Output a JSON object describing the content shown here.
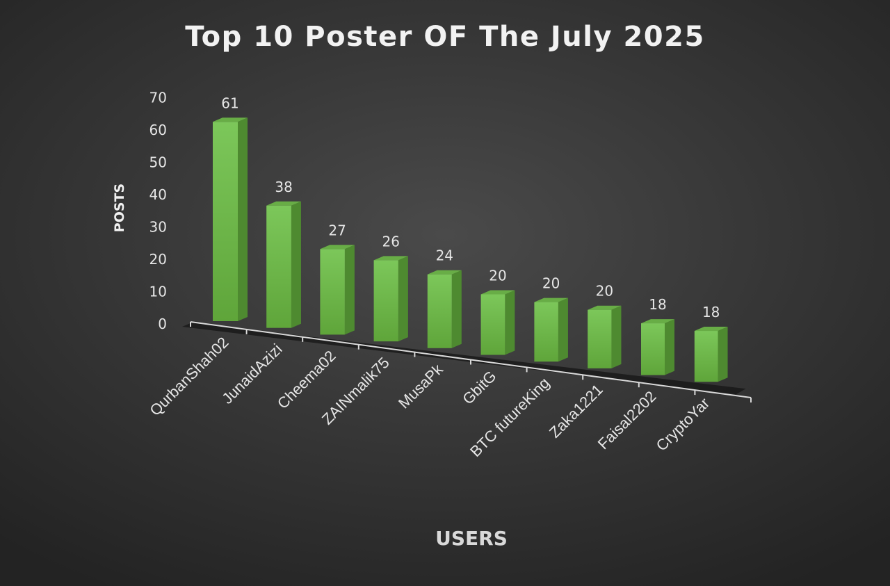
{
  "chart_data": {
    "type": "bar",
    "title": "Top 10 Poster OF The July 2025",
    "xlabel": "USERS",
    "ylabel": "POSTS",
    "categories": [
      "QurbanShah02",
      "JunaidAzizi",
      "Cheema02",
      "ZAINmalik75",
      "MusaPk",
      "GbitG",
      "BTC futureKing",
      "Zaka1221",
      "Faisal2202",
      "CryptoYar"
    ],
    "values": [
      61,
      38,
      27,
      26,
      24,
      20,
      20,
      20,
      18,
      18
    ],
    "ylim": [
      0,
      70
    ],
    "yticks": [
      "0",
      "10",
      "20",
      "30",
      "40",
      "50",
      "60",
      "70"
    ],
    "grid": false,
    "legend": "none",
    "style": "3d-column",
    "bar_color": "#70b84a"
  }
}
